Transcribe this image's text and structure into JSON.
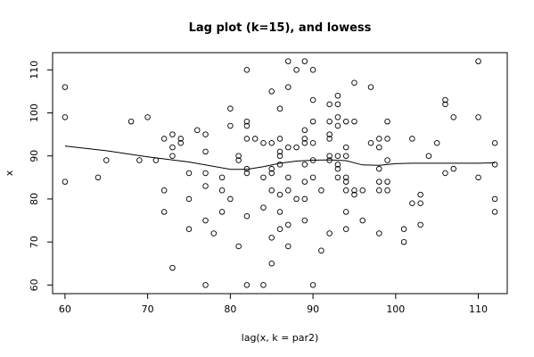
{
  "chart_data": {
    "type": "scatter",
    "title": "Lag plot (k=15), and lowess",
    "xlabel": "lag(x, k = par2)",
    "ylabel": "x",
    "xlim": [
      58.5,
      113.5
    ],
    "ylim": [
      58,
      114
    ],
    "x_ticks": [
      60,
      70,
      80,
      90,
      100,
      110
    ],
    "y_ticks": [
      60,
      70,
      80,
      90,
      100,
      110
    ],
    "grid": false,
    "legend": "none",
    "points": [
      [
        60,
        106
      ],
      [
        60,
        99
      ],
      [
        60,
        84
      ],
      [
        64,
        85
      ],
      [
        65,
        89
      ],
      [
        68,
        98
      ],
      [
        69,
        89
      ],
      [
        70,
        99
      ],
      [
        71,
        89
      ],
      [
        72,
        94
      ],
      [
        72,
        82
      ],
      [
        72,
        77
      ],
      [
        73,
        95
      ],
      [
        73,
        92
      ],
      [
        73,
        90
      ],
      [
        73,
        64
      ],
      [
        74,
        94
      ],
      [
        74,
        93
      ],
      [
        75,
        86
      ],
      [
        75,
        80
      ],
      [
        75,
        73
      ],
      [
        76,
        96
      ],
      [
        77,
        95
      ],
      [
        77,
        91
      ],
      [
        77,
        86
      ],
      [
        77,
        83
      ],
      [
        77,
        75
      ],
      [
        77,
        60
      ],
      [
        78,
        72
      ],
      [
        79,
        85
      ],
      [
        79,
        82
      ],
      [
        79,
        77
      ],
      [
        80,
        101
      ],
      [
        80,
        97
      ],
      [
        80,
        80
      ],
      [
        81,
        90
      ],
      [
        81,
        89
      ],
      [
        81,
        69
      ],
      [
        82,
        110
      ],
      [
        82,
        98
      ],
      [
        82,
        97
      ],
      [
        82,
        94
      ],
      [
        82,
        87
      ],
      [
        82,
        86
      ],
      [
        82,
        76
      ],
      [
        82,
        60
      ],
      [
        83,
        94
      ],
      [
        84,
        93
      ],
      [
        84,
        85
      ],
      [
        84,
        78
      ],
      [
        84,
        60
      ],
      [
        85,
        105
      ],
      [
        85,
        93
      ],
      [
        85,
        87
      ],
      [
        85,
        86
      ],
      [
        85,
        82
      ],
      [
        85,
        71
      ],
      [
        85,
        65
      ],
      [
        86,
        101
      ],
      [
        86,
        94
      ],
      [
        86,
        91
      ],
      [
        86,
        90
      ],
      [
        86,
        88
      ],
      [
        86,
        81
      ],
      [
        86,
        77
      ],
      [
        86,
        73
      ],
      [
        87,
        112
      ],
      [
        87,
        106
      ],
      [
        87,
        92
      ],
      [
        87,
        85
      ],
      [
        87,
        82
      ],
      [
        87,
        74
      ],
      [
        87,
        69
      ],
      [
        88,
        110
      ],
      [
        88,
        92
      ],
      [
        88,
        80
      ],
      [
        89,
        112
      ],
      [
        89,
        96
      ],
      [
        89,
        94
      ],
      [
        89,
        93
      ],
      [
        89,
        88
      ],
      [
        89,
        84
      ],
      [
        89,
        80
      ],
      [
        89,
        75
      ],
      [
        90,
        110
      ],
      [
        90,
        103
      ],
      [
        90,
        98
      ],
      [
        90,
        93
      ],
      [
        90,
        89
      ],
      [
        90,
        85
      ],
      [
        90,
        60
      ],
      [
        91,
        82
      ],
      [
        91,
        68
      ],
      [
        92,
        102
      ],
      [
        92,
        98
      ],
      [
        92,
        95
      ],
      [
        92,
        94
      ],
      [
        92,
        90
      ],
      [
        92,
        89
      ],
      [
        92,
        72
      ],
      [
        93,
        104
      ],
      [
        93,
        102
      ],
      [
        93,
        99
      ],
      [
        93,
        97
      ],
      [
        93,
        90
      ],
      [
        93,
        88
      ],
      [
        93,
        87
      ],
      [
        93,
        85
      ],
      [
        94,
        98
      ],
      [
        94,
        92
      ],
      [
        94,
        90
      ],
      [
        94,
        85
      ],
      [
        94,
        84
      ],
      [
        94,
        82
      ],
      [
        94,
        77
      ],
      [
        94,
        73
      ],
      [
        95,
        107
      ],
      [
        95,
        98
      ],
      [
        95,
        82
      ],
      [
        95,
        81
      ],
      [
        96,
        82
      ],
      [
        96,
        75
      ],
      [
        97,
        106
      ],
      [
        97,
        93
      ],
      [
        98,
        94
      ],
      [
        98,
        92
      ],
      [
        98,
        87
      ],
      [
        98,
        84
      ],
      [
        98,
        82
      ],
      [
        98,
        72
      ],
      [
        99,
        98
      ],
      [
        99,
        94
      ],
      [
        99,
        89
      ],
      [
        99,
        84
      ],
      [
        99,
        82
      ],
      [
        101,
        73
      ],
      [
        101,
        70
      ],
      [
        102,
        94
      ],
      [
        102,
        79
      ],
      [
        103,
        81
      ],
      [
        103,
        79
      ],
      [
        103,
        74
      ],
      [
        104,
        90
      ],
      [
        105,
        93
      ],
      [
        106,
        103
      ],
      [
        106,
        102
      ],
      [
        106,
        86
      ],
      [
        107,
        99
      ],
      [
        107,
        87
      ],
      [
        110,
        112
      ],
      [
        110,
        99
      ],
      [
        110,
        85
      ],
      [
        112,
        93
      ],
      [
        112,
        88
      ],
      [
        112,
        80
      ],
      [
        112,
        77
      ]
    ],
    "lowess": [
      [
        60,
        92.3
      ],
      [
        65,
        91.2
      ],
      [
        70,
        89.8
      ],
      [
        75,
        88.6
      ],
      [
        80,
        86.9
      ],
      [
        82,
        86.9
      ],
      [
        84,
        87.5
      ],
      [
        86,
        88.3
      ],
      [
        88,
        88.8
      ],
      [
        90,
        89.0
      ],
      [
        92,
        89.1
      ],
      [
        94,
        88.9
      ],
      [
        96,
        87.9
      ],
      [
        98,
        87.8
      ],
      [
        100,
        88.2
      ],
      [
        102,
        88.3
      ],
      [
        106,
        88.3
      ],
      [
        110,
        88.3
      ],
      [
        112,
        88.4
      ]
    ]
  }
}
